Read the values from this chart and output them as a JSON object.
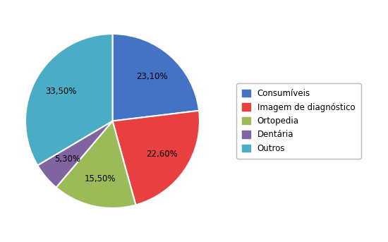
{
  "labels": [
    "Consumíveis",
    "Imagem de diagnóstico",
    "Ortopedia",
    "Dentária",
    "Outros"
  ],
  "values": [
    23.1,
    22.6,
    15.5,
    5.3,
    33.5
  ],
  "colors": [
    "#4472C4",
    "#E84040",
    "#9BBB59",
    "#8064A2",
    "#4BACC6"
  ],
  "autopct_labels": [
    "23,10%",
    "22,60%",
    "15,50%",
    "5,30%",
    "33,50%"
  ],
  "startangle": 90,
  "background_color": "#FFFFFF",
  "legend_labels": [
    "Consumíveis",
    "Imagem de diagnóstico",
    "Ortopedia",
    "Dentária",
    "Outros"
  ],
  "legend_colors": [
    "#4472C4",
    "#E84040",
    "#9BBB59",
    "#8064A2",
    "#4BACC6"
  ],
  "figsize": [
    5.5,
    3.43
  ],
  "dpi": 100
}
